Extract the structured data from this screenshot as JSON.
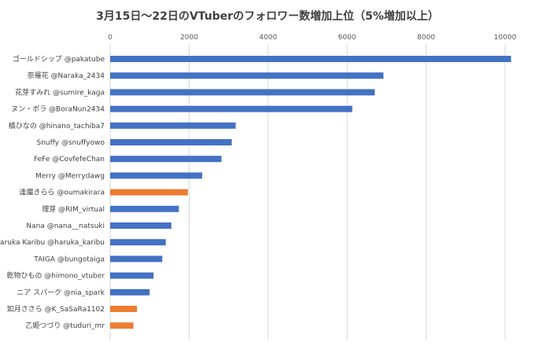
{
  "chart_data": {
    "type": "bar",
    "orientation": "horizontal",
    "title": "3月15日〜22日のVTuberのフォロワー数増加上位（5%増加以上）",
    "xlim": [
      0,
      10000
    ],
    "xticks": [
      0,
      2000,
      4000,
      6000,
      8000,
      10000
    ],
    "grid": true,
    "legend": "none",
    "colors": {
      "blue": "#4472c4",
      "orange": "#ed7d31"
    },
    "categories": [
      "ゴールドシップ @pakatube",
      "奈羅花 @Naraka_2434",
      "花芽すみれ @sumire_kaga",
      "ヌン・ボラ @BoraNun2434",
      "橘ひなの @hinano_tachiba7",
      "Snuffy @snuffyowo",
      "FeFe @CovfefeChan",
      "Merry @Merrydawg",
      "逢魔きらら @oumakirara",
      "理芽 @RIM_virtual",
      "Nana @nana__natsuki",
      "Haruka Karibu @haruka_karibu",
      "TAIGA @bungotaiga",
      "乾物ひもの @himono_vtuber",
      "ニア スパーク @nia_spark",
      "如月ささら @K_SaSaRa1102",
      "乙姫つづり @tuduri_mr"
    ],
    "values": [
      10150,
      6920,
      6700,
      6130,
      3180,
      3080,
      2820,
      2330,
      1970,
      1740,
      1550,
      1410,
      1320,
      1100,
      1000,
      680,
      590
    ],
    "bar_colors": [
      "blue",
      "blue",
      "blue",
      "blue",
      "blue",
      "blue",
      "blue",
      "blue",
      "orange",
      "blue",
      "blue",
      "blue",
      "blue",
      "blue",
      "blue",
      "orange",
      "orange"
    ]
  }
}
